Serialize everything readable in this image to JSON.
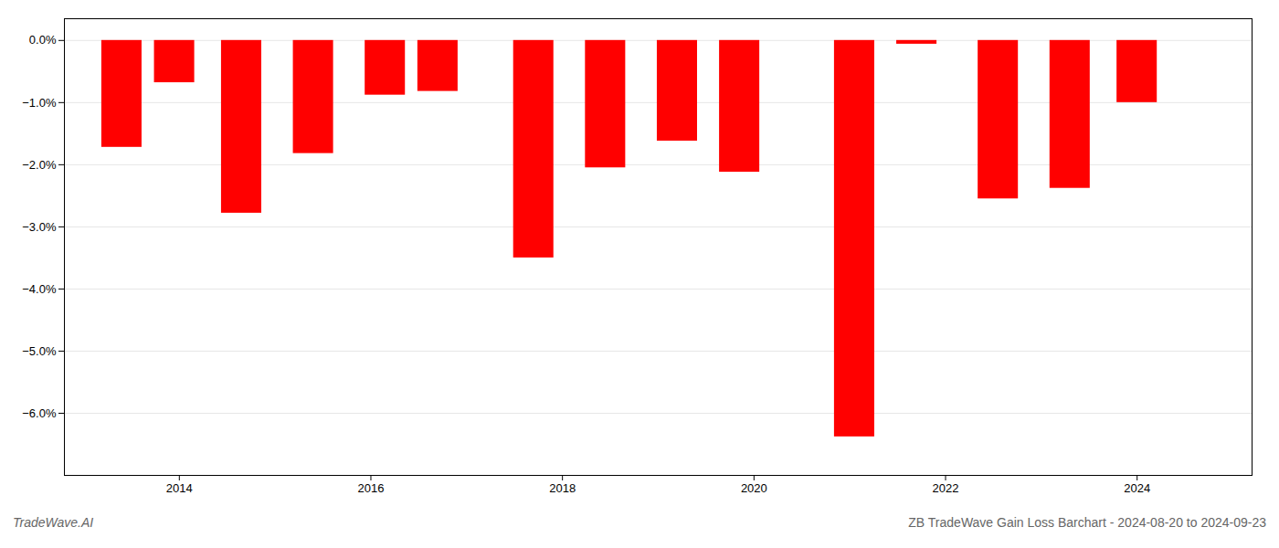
{
  "chart_data": {
    "type": "bar",
    "title": "ZB TradeWave Gain Loss Barchart - 2024-08-20 to 2024-09-23",
    "annotations": [
      "TradeWave.AI"
    ],
    "x": [
      2013.4,
      2013.95,
      2014.65,
      2015.4,
      2016.15,
      2016.7,
      2017.7,
      2018.45,
      2019.2,
      2019.85,
      2021.05,
      2021.7,
      2022.55,
      2023.3,
      2024.0
    ],
    "values": [
      -1.72,
      -0.68,
      -2.78,
      -1.82,
      -0.88,
      -0.82,
      -3.5,
      -2.05,
      -1.62,
      -2.12,
      -6.38,
      -0.06,
      -2.55,
      -2.38,
      -1.0
    ],
    "color": "#ff0000",
    "xlim": [
      2012.8,
      2025.2
    ],
    "xticks": [
      2014,
      2016,
      2018,
      2020,
      2022,
      2024
    ],
    "ylim": [
      -7.0,
      0.35
    ],
    "yticks": [
      {
        "value": 0.0,
        "label": "0.0%"
      },
      {
        "value": -1.0,
        "label": "−1.0%"
      },
      {
        "value": -2.0,
        "label": "−2.0%"
      },
      {
        "value": -3.0,
        "label": "−3.0%"
      },
      {
        "value": -4.0,
        "label": "−4.0%"
      },
      {
        "value": -5.0,
        "label": "−5.0%"
      },
      {
        "value": -6.0,
        "label": "−6.0%"
      }
    ],
    "grid": true
  }
}
